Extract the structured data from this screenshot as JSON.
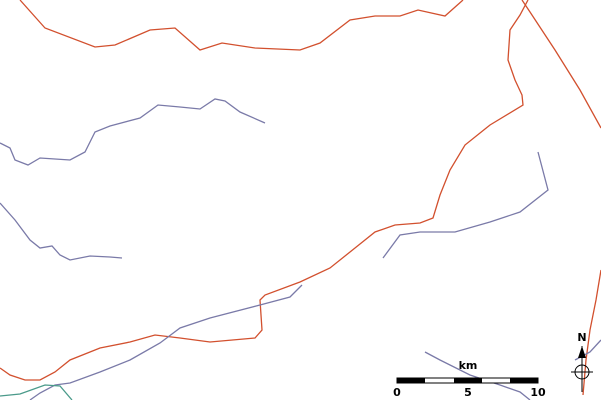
{
  "scale": {
    "unit": "km",
    "labels": [
      "0",
      "5",
      "10"
    ]
  },
  "north": "N"
}
